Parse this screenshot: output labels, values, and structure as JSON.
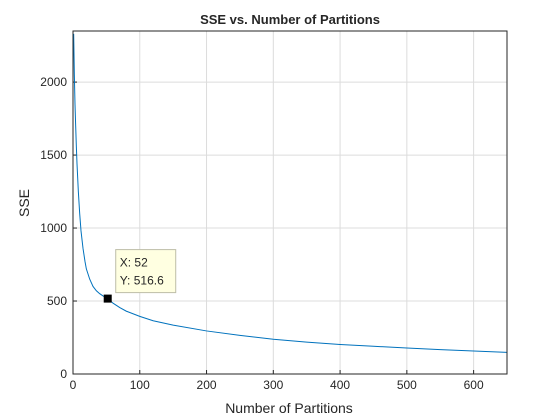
{
  "chart_data": {
    "type": "line",
    "title": "SSE vs. Number of Partitions",
    "xlabel": "Number of Partitions",
    "ylabel": "SSE",
    "xlim": [
      0,
      650
    ],
    "ylim": [
      0,
      2350
    ],
    "xticks": [
      0,
      100,
      200,
      300,
      400,
      500,
      600
    ],
    "yticks": [
      0,
      500,
      1000,
      1500,
      2000
    ],
    "xtick_labels": [
      "0",
      "100",
      "200",
      "300",
      "400",
      "500",
      "600"
    ],
    "ytick_labels": [
      "0",
      "500",
      "1000",
      "1500",
      "2000"
    ],
    "grid": true,
    "line_color": "#0072BD",
    "series": [
      {
        "x": [
          1,
          2,
          3,
          4,
          5,
          6,
          8,
          10,
          12,
          15,
          18,
          20,
          25,
          30,
          35,
          40,
          45,
          52,
          60,
          70,
          80,
          100,
          120,
          150,
          200,
          250,
          300,
          350,
          400,
          450,
          500,
          550,
          600,
          650
        ],
        "values": [
          2330,
          2050,
          1850,
          1700,
          1560,
          1440,
          1250,
          1100,
          980,
          860,
          770,
          720,
          650,
          600,
          570,
          550,
          535,
          516.6,
          485,
          455,
          430,
          395,
          365,
          335,
          295,
          265,
          238,
          218,
          202,
          190,
          178,
          167,
          158,
          148
        ]
      }
    ],
    "datatip": {
      "x": 52,
      "y": 516.6,
      "x_text": "X: 52",
      "y_text": "Y: 516.6"
    }
  }
}
